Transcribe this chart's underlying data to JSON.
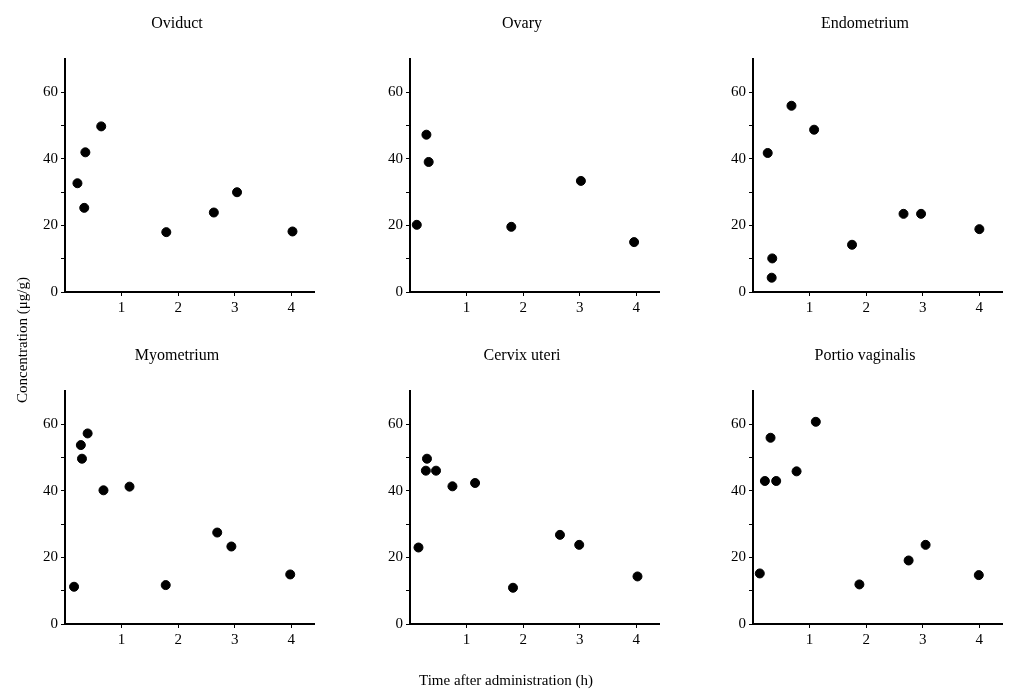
{
  "chart_data": [
    {
      "type": "scatter",
      "title": "Oviduct",
      "xlim": [
        0,
        4.4
      ],
      "ylim": [
        0,
        70
      ],
      "xticks": [
        1,
        2,
        3,
        4
      ],
      "yticks": [
        0,
        {
          "value": 10,
          "label": null
        },
        20,
        {
          "value": 30,
          "label": null
        },
        40,
        {
          "value": 50,
          "label": null
        },
        60
      ],
      "marker": "circle",
      "legend": false,
      "grid": false,
      "series": [
        {
          "color": "#000000",
          "x": [
            0.22,
            0.36,
            0.34,
            0.64,
            1.79,
            2.63,
            3.04,
            4.02
          ],
          "values": [
            32.7,
            42,
            25.3,
            49.8,
            18,
            23.9,
            30,
            18.2
          ]
        }
      ]
    },
    {
      "type": "scatter",
      "title": "Ovary",
      "xlim": [
        0,
        4.4
      ],
      "ylim": [
        0,
        70
      ],
      "xticks": [
        1,
        2,
        3,
        4
      ],
      "yticks": [
        0,
        {
          "value": 10,
          "label": null
        },
        20,
        {
          "value": 30,
          "label": null
        },
        40,
        {
          "value": 50,
          "label": null
        },
        60
      ],
      "marker": "circle",
      "legend": false,
      "grid": false,
      "series": [
        {
          "color": "#000000",
          "x": [
            0.12,
            0.29,
            0.33,
            1.79,
            3.02,
            3.96
          ],
          "values": [
            20.2,
            47.3,
            39.1,
            19.6,
            33.4,
            15
          ]
        }
      ]
    },
    {
      "type": "scatter",
      "title": "Endometrium",
      "xlim": [
        0,
        4.4
      ],
      "ylim": [
        0,
        70
      ],
      "xticks": [
        1,
        2,
        3,
        4
      ],
      "yticks": [
        0,
        {
          "value": 10,
          "label": null
        },
        20,
        {
          "value": 30,
          "label": null
        },
        40,
        {
          "value": 50,
          "label": null
        },
        60
      ],
      "marker": "circle",
      "legend": false,
      "grid": false,
      "series": [
        {
          "color": "#000000",
          "x": [
            0.26,
            0.34,
            0.33,
            0.68,
            1.08,
            1.75,
            2.66,
            2.97,
            4.0
          ],
          "values": [
            41.8,
            10.1,
            4.3,
            56,
            48.8,
            14.2,
            23.5,
            23.5,
            18.9
          ]
        }
      ]
    },
    {
      "type": "scatter",
      "title": "Myometrium",
      "ylabel": "Concentration (μg/g)",
      "xlim": [
        0,
        4.4
      ],
      "ylim": [
        0,
        70
      ],
      "xticks": [
        1,
        2,
        3,
        4
      ],
      "yticks": [
        0,
        {
          "value": 10,
          "label": null
        },
        20,
        {
          "value": 30,
          "label": null
        },
        40,
        {
          "value": 50,
          "label": null
        },
        60
      ],
      "marker": "circle",
      "legend": false,
      "grid": false,
      "series": [
        {
          "color": "#000000",
          "x": [
            0.16,
            0.28,
            0.3,
            0.4,
            0.68,
            1.14,
            1.78,
            2.69,
            2.94,
            3.98
          ],
          "values": [
            11.2,
            53.8,
            49.7,
            57.3,
            40.2,
            41.3,
            11.7,
            27.5,
            23.3,
            14.9
          ]
        }
      ]
    },
    {
      "type": "scatter",
      "title": "Cervix uteri",
      "xlabel": "Time after administration (h)",
      "xlim": [
        0,
        4.4
      ],
      "ylim": [
        0,
        70
      ],
      "xticks": [
        1,
        2,
        3,
        4
      ],
      "yticks": [
        0,
        {
          "value": 10,
          "label": null
        },
        20,
        {
          "value": 30,
          "label": null
        },
        40,
        {
          "value": 50,
          "label": null
        },
        60
      ],
      "marker": "circle",
      "legend": false,
      "grid": false,
      "series": [
        {
          "color": "#000000",
          "x": [
            0.15,
            0.3,
            0.28,
            0.46,
            0.75,
            1.15,
            1.82,
            2.65,
            2.99,
            4.02
          ],
          "values": [
            23,
            49.7,
            46.1,
            46.1,
            41.4,
            42.4,
            10.9,
            26.8,
            23.8,
            14.3
          ]
        }
      ]
    },
    {
      "type": "scatter",
      "title": "Portio vaginalis",
      "xlim": [
        0,
        4.4
      ],
      "ylim": [
        0,
        70
      ],
      "xticks": [
        1,
        2,
        3,
        4
      ],
      "yticks": [
        0,
        {
          "value": 10,
          "label": null
        },
        20,
        {
          "value": 30,
          "label": null
        },
        40,
        {
          "value": 50,
          "label": null
        },
        60
      ],
      "marker": "circle",
      "legend": false,
      "grid": false,
      "series": [
        {
          "color": "#000000",
          "x": [
            0.12,
            0.31,
            0.21,
            0.41,
            0.77,
            1.11,
            1.88,
            2.75,
            3.05,
            3.99
          ],
          "values": [
            15.2,
            56,
            43,
            43,
            45.9,
            60.8,
            11.9,
            19.1,
            23.8,
            14.7
          ]
        }
      ]
    }
  ]
}
